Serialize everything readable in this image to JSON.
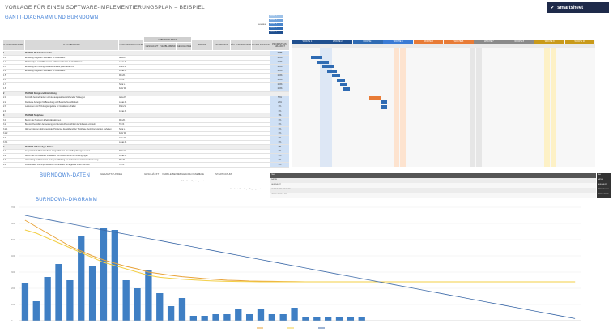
{
  "header": {
    "title": "VORLAGE FÜR EINEN SOFTWARE-IMPLEMENTIERUNGSPLAN – BEISPIEL",
    "logo_text": "smartsheet",
    "logo_sub": "by"
  },
  "sections": {
    "gantt": "GANTT-DIAGRAMM UND BURNDOWN",
    "burndown_data": "BURNDOWN-DATEN",
    "burndown_chart": "BURNDOWN-DIAGRAMM"
  },
  "columns": [
    "PROJEKTSTRUKTURPLAN",
    "AUFGABENTITEL",
    "VERANTWORTLICHE/R",
    "GESCHÄTZT",
    "VERBLEIBEND",
    "ABGESCHLOSSEN",
    "SPRINT",
    "STARTDATUM",
    "FÄLLIGKEITSDATUM",
    "DAUER IN TAGEN",
    "PROZENTSATZ ERLEDIGT"
  ],
  "columns_group": "ARBEITSSTUNDEN",
  "legend": [
    "SPRINT 1",
    "SPRINT 2",
    "SPRINT 3",
    "SPRINT 4",
    "SPRINT 5"
  ],
  "legend_label": "LEGENDE",
  "weeks": [
    "WOCHE 1",
    "WOCHE 2",
    "WOCHE 3",
    "WOCHE 4",
    "WOCHE 5",
    "WOCHE 6",
    "WOCHE 7",
    "WOCHE 8",
    "WOCHE 9",
    "WOCHE 10"
  ],
  "rows": [
    {
      "id": "1",
      "task": "PHASE 1 Machbarkeitsstudie",
      "owner": "",
      "est": "",
      "rem": "",
      "done": "",
      "start": "",
      "due": "",
      "dur": "",
      "pct": "100%",
      "phase": true
    },
    {
      "id": "1.1",
      "task": "Erstellung möglicher Szenarien für Lieferanten",
      "owner": "Anna P.",
      "est": "",
      "rem": "",
      "done": "",
      "start": "",
      "due": "",
      "dur": "",
      "pct": "100%",
      "phase": false
    },
    {
      "id": "1.2",
      "task": "Marktanalyse und Effizienz von Softwareanbietern zu identifizieren",
      "owner": "Lukas M.",
      "est": "",
      "rem": "",
      "done": "",
      "start": "",
      "due": "",
      "dur": "",
      "pct": "100%",
      "phase": false
    },
    {
      "id": "1.3",
      "task": "Erstellung der Haftungshinweiße und die potenziellen KPI",
      "owner": "Petra S.",
      "est": "",
      "rem": "",
      "done": "",
      "start": "",
      "due": "",
      "dur": "",
      "pct": "100%",
      "phase": false
    },
    {
      "id": "1.4",
      "task": "Erstellung möglicher Szenarien für Lieferanten",
      "owner": "Jonas K.",
      "est": "",
      "rem": "",
      "done": "",
      "start": "",
      "due": "",
      "dur": "",
      "pct": "100%",
      "phase": false
    },
    {
      "id": "1.5",
      "task": "",
      "owner": "Mira B.",
      "est": "",
      "rem": "",
      "done": "",
      "start": "",
      "due": "",
      "dur": "",
      "pct": "100%",
      "phase": false
    },
    {
      "id": "1.6",
      "task": "",
      "owner": "Tim R.",
      "est": "",
      "rem": "",
      "done": "",
      "start": "",
      "due": "",
      "dur": "",
      "pct": "100%",
      "phase": false
    },
    {
      "id": "1.7",
      "task": "",
      "owner": "Sara L.",
      "est": "",
      "rem": "",
      "done": "",
      "start": "",
      "due": "",
      "dur": "",
      "pct": "100%",
      "phase": false
    },
    {
      "id": "1.8",
      "task": "",
      "owner": "Felix W.",
      "est": "",
      "rem": "",
      "done": "",
      "start": "",
      "due": "",
      "dur": "",
      "pct": "100%",
      "phase": false
    },
    {
      "id": "2",
      "task": "PHASE 2 Design und Entwicklung",
      "owner": "",
      "est": "",
      "rem": "",
      "done": "",
      "start": "",
      "due": "",
      "dur": "",
      "pct": "",
      "phase": true
    },
    {
      "id": "2.1",
      "task": "Kontrolle bei Lieferanten und der ausgewählten Vorbereiter Strategien",
      "owner": "Anna P.",
      "est": "",
      "rem": "",
      "done": "",
      "start": "",
      "due": "",
      "dur": "",
      "pct": "50%",
      "phase": false
    },
    {
      "id": "2.2",
      "task": "Definierte Anzeigen für Bewertung und Benutzerfreundlichkeit",
      "owner": "Lukas M.",
      "est": "",
      "rem": "",
      "done": "",
      "start": "",
      "due": "",
      "dur": "",
      "pct": "25%",
      "phase": false
    },
    {
      "id": "2.3",
      "task": "Leistungen und Schulungsangebote für Installation erhalten",
      "owner": "Petra S.",
      "est": "",
      "rem": "",
      "done": "",
      "start": "",
      "due": "",
      "dur": "",
      "pct": "0%",
      "phase": false
    },
    {
      "id": "2.4",
      "task": "",
      "owner": "Jonas K.",
      "est": "",
      "rem": "",
      "done": "",
      "start": "",
      "due": "",
      "dur": "",
      "pct": "0%",
      "phase": false
    },
    {
      "id": "3",
      "task": "PHASE 3 Testphase",
      "owner": "",
      "est": "",
      "rem": "",
      "done": "",
      "start": "",
      "due": "",
      "dur": "",
      "pct": "0%",
      "phase": true
    },
    {
      "id": "3.1",
      "task": "Beginn der Tests von Effektivitätsaktionen",
      "owner": "Mira B.",
      "est": "",
      "rem": "",
      "done": "",
      "start": "",
      "due": "",
      "dur": "",
      "pct": "0%",
      "phase": false
    },
    {
      "id": "3.2",
      "task": "Benutzerfreundlich der Leistung und Benutzerfreundlichkeit der Software ermitteln",
      "owner": "Tim R.",
      "est": "",
      "rem": "",
      "done": "",
      "start": "",
      "due": "",
      "dur": "",
      "pct": "0%",
      "phase": false
    },
    {
      "id": "3.2.1",
      "task": "Alle technischen Störungen oder Probleme, die während der Testphase identifiziert wurden, beheben",
      "owner": "Sara L.",
      "est": "",
      "rem": "",
      "done": "",
      "start": "",
      "due": "",
      "dur": "",
      "pct": "0%",
      "phase": false
    },
    {
      "id": "3.2.2",
      "task": "",
      "owner": "Felix W.",
      "est": "",
      "rem": "",
      "done": "",
      "start": "",
      "due": "",
      "dur": "",
      "pct": "0%",
      "phase": false
    },
    {
      "id": "3.3",
      "task": "",
      "owner": "Anna P.",
      "est": "",
      "rem": "",
      "done": "",
      "start": "",
      "due": "",
      "dur": "",
      "pct": "0%",
      "phase": false
    },
    {
      "id": "3.3.1",
      "task": "",
      "owner": "Lukas M.",
      "est": "",
      "rem": "",
      "done": "",
      "start": "",
      "due": "",
      "dur": "",
      "pct": "0%",
      "phase": false
    },
    {
      "id": "4",
      "task": "PHASE 4 Vollständiges Rollout",
      "owner": "",
      "est": "",
      "rem": "",
      "done": "",
      "start": "",
      "due": "",
      "dur": "",
      "pct": "0%",
      "phase": true
    },
    {
      "id": "4.1",
      "task": "Auf potenzielle Benutzer Tests ausgeführt bzw. Neueinflugslösungen setzen",
      "owner": "Petra S.",
      "est": "",
      "rem": "",
      "done": "",
      "start": "",
      "due": "",
      "dur": "",
      "pct": "0%",
      "phase": false
    },
    {
      "id": "4.2",
      "task": "Beginn der schrittweisen Installation von Lieferanten in den Zwelngungen",
      "owner": "Jonas K.",
      "est": "",
      "rem": "",
      "done": "",
      "start": "",
      "due": "",
      "dur": "",
      "pct": "0%",
      "phase": false
    },
    {
      "id": "4.3",
      "task": "Umsetzung für Personal in Bezug auf Wartung der Lieferanten und Kundenbetreuung",
      "owner": "Mira B.",
      "est": "",
      "rem": "",
      "done": "",
      "start": "",
      "due": "",
      "dur": "",
      "pct": "0%",
      "phase": false
    },
    {
      "id": "4.4",
      "task": "Funktionalität von implementierten Lieferanten zur Ergebnis finden anhören",
      "owner": "Tim R.",
      "est": "",
      "rem": "",
      "done": "",
      "start": "",
      "due": "",
      "dur": "",
      "pct": "0%",
      "phase": false
    }
  ],
  "kpis": [
    {
      "label": "GESAMTSTUNDEN",
      "value": ""
    },
    {
      "label": "GESCHÄTZT",
      "value": ""
    },
    {
      "label": "VERBLEIBEND",
      "value": ""
    },
    {
      "label": "ABGESCHLOSSEN",
      "value": ""
    },
    {
      "label": "TAGE",
      "value": ""
    },
    {
      "label": "STARTDATUM",
      "value": ""
    }
  ],
  "kpi_note": "* Anzahl der Tage insgesamt",
  "kpi_note2": "Geschätzte Stunden pro Tag insgesamt",
  "bd_rows": [
    "TAG",
    "DATUM",
    "GESCHÄTZT",
    "GESCHÄTZTE STUNDEN",
    "VERBLEIBENDE STD"
  ],
  "bd_keys": [
    "TAG",
    "DATUM",
    "GESCHÄTZT",
    "TATSÄCHLICH",
    "VERBLEIBEND"
  ],
  "chart_data": {
    "type": "bar",
    "title": "",
    "xlabel": "",
    "ylabel": "",
    "ylim": [
      0,
      700
    ],
    "yticks": [
      "0",
      "100",
      "200",
      "300",
      "400",
      "500",
      "600",
      "700"
    ],
    "values": [
      230,
      120,
      270,
      350,
      250,
      520,
      340,
      570,
      560,
      250,
      200,
      310,
      170,
      90,
      140,
      30,
      30,
      40,
      40,
      70,
      40,
      70,
      40,
      40,
      80,
      20,
      20,
      20,
      20,
      20,
      20,
      0,
      0,
      0,
      0,
      0,
      0,
      0,
      0,
      0,
      0,
      0,
      0,
      0,
      0,
      0,
      0,
      0,
      0,
      0
    ],
    "series": [
      {
        "name": "",
        "values": [
          620,
          580,
          540,
          500,
          460,
          430,
          400,
          375,
          355,
          335,
          320,
          300,
          290,
          280,
          272,
          266,
          260,
          255,
          250,
          248,
          245,
          244,
          243,
          242,
          241,
          240,
          240,
          240,
          240,
          240,
          240,
          240,
          240,
          240,
          240,
          240,
          240,
          240,
          240,
          240,
          240,
          240,
          240,
          240,
          240,
          240,
          240,
          240,
          240,
          240
        ]
      },
      {
        "name": "",
        "values": [
          560,
          540,
          510,
          480,
          450,
          420,
          390,
          360,
          340,
          320,
          300,
          280,
          268,
          262,
          256,
          252,
          248,
          245,
          243,
          242,
          241,
          240,
          240,
          240,
          240,
          240,
          240,
          240,
          240,
          240,
          240,
          240,
          240,
          240,
          240,
          240,
          240,
          240,
          240,
          240,
          240,
          240,
          240,
          240,
          240,
          240,
          240,
          240,
          240,
          240
        ]
      },
      {
        "name": "",
        "values": [
          650,
          637,
          624,
          611,
          598,
          585,
          572,
          559,
          546,
          533,
          520,
          507,
          494,
          481,
          468,
          455,
          442,
          429,
          416,
          403,
          390,
          377,
          364,
          351,
          338,
          325,
          312,
          299,
          286,
          273,
          260,
          247,
          234,
          221,
          208,
          195,
          182,
          169,
          156,
          143,
          130,
          117,
          104,
          91,
          78,
          65,
          52,
          39,
          26,
          13
        ]
      }
    ],
    "legend": [
      "",
      "",
      ""
    ],
    "colors": {
      "bar": "#3f7fc4",
      "actual": "#e8a33a",
      "estimated": "#f3cf45",
      "ideal": "#3d6aa8"
    }
  }
}
